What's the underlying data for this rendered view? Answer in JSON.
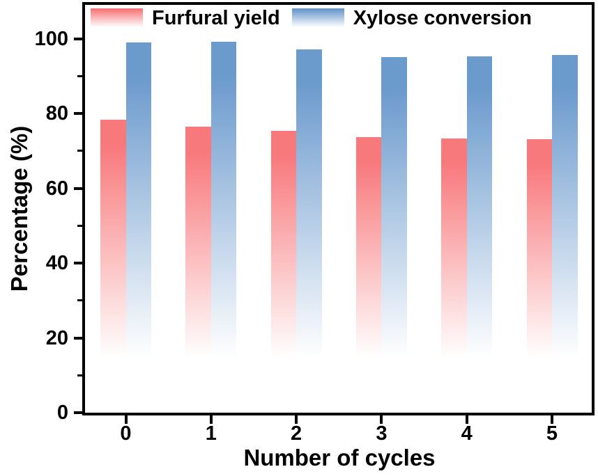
{
  "figure": {
    "background": "#FFFFFF",
    "frame_color": "#000000",
    "text_color": "#000000"
  },
  "chart_data": {
    "type": "bar",
    "categories": [
      "0",
      "1",
      "2",
      "3",
      "4",
      "5"
    ],
    "series": [
      {
        "name": "Furfural yield",
        "color": "#F8797C",
        "values": [
          78.4,
          76.4,
          75.3,
          73.6,
          73.3,
          73.1
        ]
      },
      {
        "name": "Xylose conversion",
        "color": "#6B9ACD",
        "values": [
          99.0,
          99.2,
          97.1,
          95.1,
          95.3,
          95.6
        ]
      }
    ],
    "title": "",
    "xlabel": "Number of cycles",
    "ylabel": "Percentage (%)",
    "ylim": [
      0,
      100
    ],
    "yticks": [
      0,
      20,
      40,
      60,
      80,
      100
    ],
    "yticks_minor": [
      10,
      30,
      50,
      70,
      90
    ],
    "grid": false,
    "legend_position": "top-inside",
    "bar_style": "solid color at top fading vertically to white near bar bottom"
  }
}
